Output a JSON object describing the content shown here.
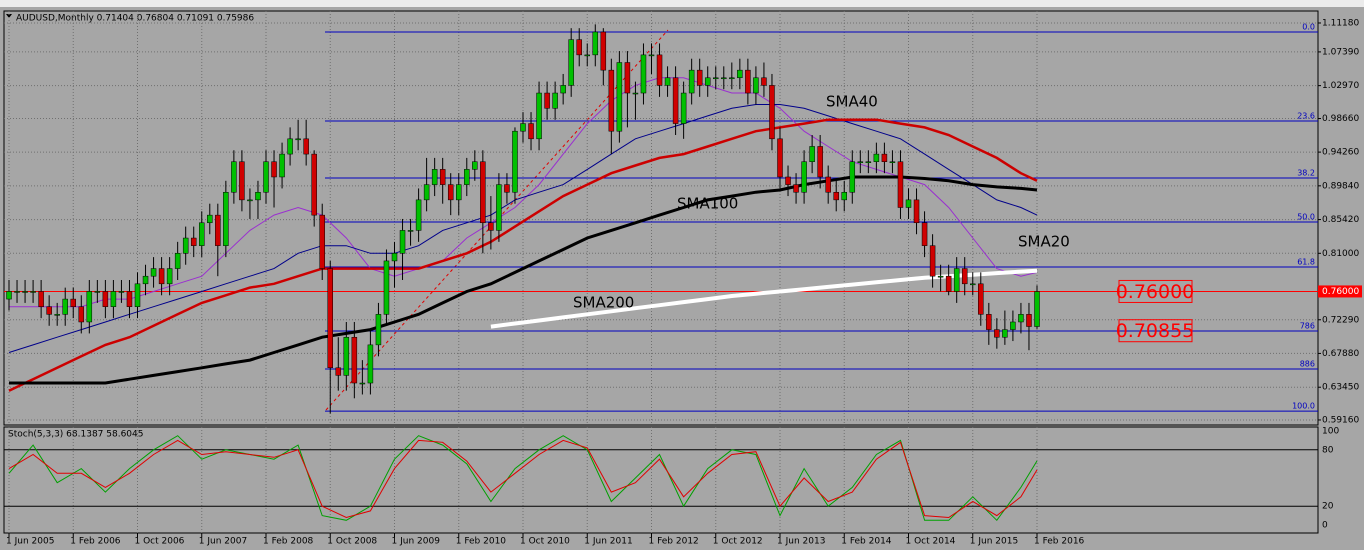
{
  "chart_data": {
    "type": "candlestick",
    "title": "AUDUSD,Monthly  0.71404 0.76804 0.71091 0.75986",
    "categories": [
      "1 Jun 2005",
      null,
      null,
      null,
      null,
      null,
      null,
      null,
      "1 Feb 2006",
      null,
      null,
      null,
      null,
      null,
      null,
      null,
      "1 Oct 2006",
      null,
      null,
      null,
      null,
      null,
      null,
      null,
      "1 Jun 2007",
      null,
      null,
      null,
      null,
      null,
      null,
      null,
      "1 Feb 2008",
      null,
      null,
      null,
      null,
      null,
      null,
      null,
      "1 Oct 2008",
      null,
      null,
      null,
      null,
      null,
      null,
      null,
      "1 Jun 2009",
      null,
      null,
      null,
      null,
      null,
      null,
      null,
      "1 Feb 2010",
      null,
      null,
      null,
      null,
      null,
      null,
      null,
      "1 Oct 2010",
      null,
      null,
      null,
      null,
      null,
      null,
      null,
      "1 Jun 2011",
      null,
      null,
      null,
      null,
      null,
      null,
      null,
      "1 Feb 2012",
      null,
      null,
      null,
      null,
      null,
      null,
      null,
      "1 Oct 2012",
      null,
      null,
      null,
      null,
      null,
      null,
      null,
      "1 Jun 2013",
      null,
      null,
      null,
      null,
      null,
      null,
      null,
      "1 Feb 2014",
      null,
      null,
      null,
      null,
      null,
      null,
      null,
      "1 Oct 2014",
      null,
      null,
      null,
      null,
      null,
      null,
      null,
      "1 Jun 2015",
      null,
      null,
      null,
      null,
      null,
      null,
      null,
      "1 Feb 2016"
    ],
    "open": [
      0.75,
      0.76,
      0.76,
      0.76,
      0.76,
      0.74,
      0.73,
      0.73,
      0.75,
      0.74,
      0.72,
      0.76,
      0.76,
      0.74,
      0.76,
      0.76,
      0.74,
      0.77,
      0.78,
      0.79,
      0.77,
      0.79,
      0.81,
      0.83,
      0.82,
      0.85,
      0.86,
      0.82,
      0.89,
      0.93,
      0.88,
      0.88,
      0.89,
      0.93,
      0.91,
      0.94,
      0.96,
      0.96,
      0.94,
      0.86,
      0.79,
      0.66,
      0.65,
      0.7,
      0.64,
      0.64,
      0.69,
      0.73,
      0.8,
      0.81,
      0.84,
      0.84,
      0.88,
      0.9,
      0.92,
      0.9,
      0.88,
      0.9,
      0.92,
      0.93,
      0.85,
      0.84,
      0.9,
      0.89,
      0.97,
      0.98,
      0.96,
      1.02,
      1.0,
      1.02,
      1.03,
      1.09,
      1.07,
      1.07,
      1.1,
      1.05,
      0.97,
      1.06,
      1.02,
      1.02,
      1.07,
      1.07,
      1.03,
      1.04,
      0.98,
      1.02,
      1.05,
      1.03,
      1.04,
      1.04,
      1.04,
      1.04,
      1.05,
      1.02,
      1.04,
      1.03,
      0.96,
      0.91,
      0.9,
      0.89,
      0.93,
      0.95,
      0.91,
      0.89,
      0.88,
      0.89,
      0.93,
      0.93,
      0.93,
      0.94,
      0.93,
      0.93,
      0.87,
      0.88,
      0.85,
      0.82,
      0.78,
      0.78,
      0.76,
      0.79,
      0.77,
      0.77,
      0.73,
      0.71,
      0.7,
      0.71,
      0.72,
      0.73,
      0.71404
    ],
    "high": [
      0.775,
      0.775,
      0.775,
      0.775,
      0.775,
      0.755,
      0.745,
      0.765,
      0.765,
      0.755,
      0.775,
      0.775,
      0.775,
      0.775,
      0.775,
      0.775,
      0.785,
      0.795,
      0.805,
      0.805,
      0.805,
      0.825,
      0.845,
      0.845,
      0.865,
      0.875,
      0.875,
      0.905,
      0.945,
      0.945,
      0.895,
      0.905,
      0.945,
      0.945,
      0.955,
      0.975,
      0.985,
      0.985,
      0.945,
      0.875,
      0.8,
      0.7,
      0.72,
      0.72,
      0.67,
      0.71,
      0.745,
      0.815,
      0.825,
      0.855,
      0.855,
      0.895,
      0.935,
      0.935,
      0.935,
      0.915,
      0.915,
      0.935,
      0.945,
      0.945,
      0.885,
      0.915,
      0.915,
      0.975,
      0.995,
      0.995,
      1.035,
      1.035,
      1.035,
      1.045,
      1.105,
      1.105,
      1.085,
      1.11,
      1.105,
      1.065,
      1.075,
      1.075,
      1.035,
      1.085,
      1.085,
      1.085,
      1.055,
      1.055,
      1.035,
      1.065,
      1.065,
      1.055,
      1.055,
      1.055,
      1.06,
      1.065,
      1.065,
      1.055,
      1.06,
      1.045,
      0.975,
      0.925,
      0.915,
      0.945,
      0.965,
      0.965,
      0.925,
      0.905,
      0.905,
      0.945,
      0.945,
      0.945,
      0.955,
      0.955,
      0.945,
      0.945,
      0.895,
      0.895,
      0.865,
      0.835,
      0.795,
      0.795,
      0.805,
      0.805,
      0.785,
      0.785,
      0.745,
      0.725,
      0.735,
      0.735,
      0.745,
      0.745,
      0.76804
    ],
    "low": [
      0.735,
      0.745,
      0.745,
      0.745,
      0.725,
      0.715,
      0.715,
      0.715,
      0.725,
      0.705,
      0.705,
      0.745,
      0.725,
      0.725,
      0.745,
      0.725,
      0.725,
      0.755,
      0.765,
      0.755,
      0.755,
      0.775,
      0.795,
      0.805,
      0.805,
      0.835,
      0.78,
      0.805,
      0.875,
      0.865,
      0.855,
      0.855,
      0.875,
      0.87,
      0.895,
      0.925,
      0.945,
      0.925,
      0.845,
      0.775,
      0.6,
      0.63,
      0.63,
      0.62,
      0.625,
      0.625,
      0.675,
      0.715,
      0.765,
      0.775,
      0.82,
      0.825,
      0.865,
      0.885,
      0.875,
      0.86,
      0.86,
      0.885,
      0.905,
      0.81,
      0.815,
      0.825,
      0.875,
      0.875,
      0.955,
      0.945,
      0.945,
      0.985,
      0.985,
      1.005,
      1.015,
      1.055,
      1.055,
      1.055,
      1.03,
      0.94,
      0.955,
      0.975,
      0.985,
      1.005,
      1.045,
      1.015,
      1.015,
      0.965,
      0.96,
      1.005,
      1.015,
      1.015,
      1.025,
      1.025,
      1.025,
      1.025,
      1.005,
      1.005,
      1.015,
      0.945,
      0.895,
      0.885,
      0.875,
      0.875,
      0.915,
      0.895,
      0.875,
      0.865,
      0.865,
      0.875,
      0.915,
      0.915,
      0.915,
      0.915,
      0.915,
      0.855,
      0.855,
      0.835,
      0.805,
      0.765,
      0.76,
      0.755,
      0.745,
      0.755,
      0.755,
      0.715,
      0.69,
      0.685,
      0.69,
      0.695,
      0.705,
      0.683,
      0.71091
    ],
    "close": [
      0.76,
      0.76,
      0.76,
      0.76,
      0.74,
      0.73,
      0.73,
      0.75,
      0.74,
      0.72,
      0.76,
      0.76,
      0.74,
      0.76,
      0.76,
      0.74,
      0.77,
      0.78,
      0.79,
      0.77,
      0.79,
      0.81,
      0.83,
      0.82,
      0.85,
      0.86,
      0.82,
      0.89,
      0.93,
      0.88,
      0.88,
      0.89,
      0.93,
      0.91,
      0.94,
      0.96,
      0.96,
      0.94,
      0.86,
      0.79,
      0.66,
      0.65,
      0.7,
      0.64,
      0.64,
      0.69,
      0.73,
      0.8,
      0.81,
      0.84,
      0.84,
      0.88,
      0.9,
      0.92,
      0.9,
      0.88,
      0.9,
      0.92,
      0.93,
      0.85,
      0.84,
      0.9,
      0.89,
      0.97,
      0.98,
      0.96,
      1.02,
      1.0,
      1.02,
      1.03,
      1.09,
      1.07,
      1.07,
      1.1,
      1.05,
      0.97,
      1.06,
      1.02,
      1.02,
      1.07,
      1.07,
      1.03,
      1.04,
      0.98,
      1.02,
      1.05,
      1.03,
      1.04,
      1.04,
      1.04,
      1.04,
      1.05,
      1.02,
      1.04,
      1.03,
      0.96,
      0.91,
      0.9,
      0.89,
      0.93,
      0.95,
      0.91,
      0.89,
      0.88,
      0.89,
      0.93,
      0.93,
      0.93,
      0.94,
      0.93,
      0.93,
      0.87,
      0.88,
      0.85,
      0.82,
      0.78,
      0.78,
      0.76,
      0.79,
      0.77,
      0.77,
      0.73,
      0.71,
      0.7,
      0.71,
      0.72,
      0.73,
      0.71404,
      0.75986
    ],
    "up_color": "#00c000",
    "down_color": "#d00000",
    "ylim": [
      0.585,
      1.1275
    ],
    "yticks": [
      {
        "value": 1.1118,
        "label": "1.11180"
      },
      {
        "value": 1.0739,
        "label": "1.07390"
      },
      {
        "value": 1.0297,
        "label": "1.02970"
      },
      {
        "value": 0.9866,
        "label": "0.98660"
      },
      {
        "value": 0.9426,
        "label": "0.94260"
      },
      {
        "value": 0.8984,
        "label": "0.89840"
      },
      {
        "value": 0.8542,
        "label": "0.85420"
      },
      {
        "value": 0.81,
        "label": "0.81000"
      },
      {
        "value": 0.7229,
        "label": "0.72290"
      },
      {
        "value": 0.6788,
        "label": "0.67880"
      },
      {
        "value": 0.6345,
        "label": "0.63450"
      },
      {
        "value": 0.5916,
        "label": "0.59160"
      }
    ],
    "grid": true,
    "price_line": {
      "value": 0.76,
      "label": "0.76000",
      "color": "#ff0000"
    },
    "boxes": [
      {
        "value": 0.76,
        "label": "0.76000"
      },
      {
        "value": 0.70855,
        "label": "0.70855"
      }
    ],
    "fibo": {
      "color": "#0000c0",
      "levels": [
        {
          "value": 1.1,
          "label": "0.0"
        },
        {
          "value": 0.9834,
          "label": "23.6"
        },
        {
          "value": 0.9087,
          "label": "38.2"
        },
        {
          "value": 0.851,
          "label": "50.0"
        },
        {
          "value": 0.792,
          "label": "61.8"
        },
        {
          "value": 0.7081,
          "label": "786"
        },
        {
          "value": 0.6583,
          "label": "886"
        },
        {
          "value": 0.6032,
          "label": "100.0"
        }
      ]
    },
    "x": [
      "2005-06",
      "2005-09",
      "2005-12",
      "2006-03",
      "2006-06",
      "2006-09",
      "2006-12",
      "2007-03",
      "2007-06",
      "2007-09",
      "2007-12",
      "2008-03",
      "2008-06",
      "2008-09",
      "2008-12",
      "2009-03",
      "2009-06",
      "2009-09",
      "2009-12",
      "2010-03",
      "2010-06",
      "2010-09",
      "2010-12",
      "2011-03",
      "2011-06",
      "2011-09",
      "2011-12",
      "2012-03",
      "2012-06",
      "2012-09",
      "2012-12",
      "2013-03",
      "2013-06",
      "2013-09",
      "2013-12",
      "2014-03",
      "2014-06",
      "2014-09",
      "2014-12",
      "2015-03",
      "2015-06",
      "2015-09",
      "2015-12",
      "2016-02"
    ],
    "moving_averages": [
      {
        "name": "SMA20",
        "color": "#9a2fd0",
        "width": 1,
        "values": [
          0.74,
          0.74,
          0.74,
          0.74,
          0.75,
          0.75,
          0.76,
          0.77,
          0.78,
          0.81,
          0.84,
          0.86,
          0.87,
          0.86,
          0.83,
          0.79,
          0.78,
          0.79,
          0.8,
          0.83,
          0.85,
          0.87,
          0.9,
          0.94,
          0.98,
          1.01,
          1.03,
          1.04,
          1.04,
          1.03,
          1.02,
          1.02,
          1.0,
          0.97,
          0.95,
          0.93,
          0.92,
          0.91,
          0.9,
          0.87,
          0.83,
          0.79,
          0.78,
          0.785
        ]
      },
      {
        "name": "SMA40",
        "color": "#00008a",
        "width": 1,
        "values": [
          0.68,
          0.69,
          0.7,
          0.71,
          0.72,
          0.73,
          0.74,
          0.75,
          0.76,
          0.77,
          0.78,
          0.79,
          0.81,
          0.82,
          0.82,
          0.81,
          0.81,
          0.82,
          0.84,
          0.85,
          0.86,
          0.88,
          0.89,
          0.9,
          0.92,
          0.94,
          0.96,
          0.97,
          0.98,
          0.99,
          1.0,
          1.005,
          1.005,
          1.0,
          0.99,
          0.98,
          0.97,
          0.96,
          0.94,
          0.92,
          0.9,
          0.88,
          0.87,
          0.86
        ]
      },
      {
        "color": "#cc0000",
        "width": 2.5,
        "values": [
          0.63,
          0.645,
          0.66,
          0.675,
          0.69,
          0.7,
          0.715,
          0.73,
          0.745,
          0.755,
          0.765,
          0.77,
          0.78,
          0.79,
          0.79,
          0.79,
          0.79,
          0.79,
          0.8,
          0.81,
          0.825,
          0.845,
          0.865,
          0.885,
          0.9,
          0.915,
          0.925,
          0.935,
          0.94,
          0.95,
          0.96,
          0.97,
          0.975,
          0.98,
          0.985,
          0.985,
          0.985,
          0.98,
          0.975,
          0.965,
          0.95,
          0.935,
          0.915,
          0.905
        ]
      },
      {
        "name": "SMA100",
        "color": "#000000",
        "width": 3,
        "values": [
          0.64,
          0.64,
          0.64,
          0.64,
          0.64,
          0.645,
          0.65,
          0.655,
          0.66,
          0.665,
          0.67,
          0.68,
          0.69,
          0.7,
          0.705,
          0.71,
          0.72,
          0.73,
          0.745,
          0.76,
          0.77,
          0.785,
          0.8,
          0.815,
          0.83,
          0.84,
          0.85,
          0.86,
          0.87,
          0.88,
          0.885,
          0.89,
          0.893,
          0.9,
          0.905,
          0.91,
          0.91,
          0.91,
          0.908,
          0.905,
          0.9,
          0.897,
          0.895,
          0.893
        ]
      },
      {
        "name": "SMA200",
        "color": "#ffffff",
        "width": 4,
        "values": [
          null,
          null,
          null,
          null,
          null,
          null,
          null,
          null,
          null,
          null,
          null,
          null,
          null,
          null,
          null,
          null,
          null,
          null,
          null,
          null,
          0.714,
          0.718,
          0.722,
          0.726,
          0.73,
          0.734,
          0.738,
          0.742,
          0.746,
          0.75,
          0.754,
          0.757,
          0.76,
          0.763,
          0.766,
          0.769,
          0.772,
          0.775,
          0.778,
          0.78,
          0.782,
          0.784,
          0.786,
          0.787
        ]
      }
    ],
    "stochastic": {
      "title": "Stoch(5,3,3) 68.1387 58.6045",
      "ylim": [
        0,
        100
      ],
      "yticks": [
        100,
        80,
        20,
        0
      ],
      "levels": [
        80,
        20
      ],
      "series": [
        {
          "color": "#00a000",
          "values": [
            55,
            85,
            45,
            60,
            35,
            60,
            80,
            95,
            70,
            80,
            75,
            70,
            85,
            10,
            5,
            20,
            70,
            95,
            85,
            65,
            25,
            60,
            80,
            95,
            80,
            25,
            50,
            75,
            20,
            60,
            80,
            75,
            10,
            60,
            20,
            40,
            75,
            90,
            5,
            5,
            30,
            5,
            40,
            68.1387
          ]
        },
        {
          "color": "#e00000",
          "values": [
            60,
            75,
            55,
            55,
            40,
            55,
            75,
            90,
            75,
            78,
            75,
            72,
            80,
            20,
            8,
            15,
            60,
            90,
            88,
            68,
            35,
            55,
            75,
            90,
            82,
            35,
            45,
            70,
            30,
            55,
            75,
            78,
            20,
            50,
            25,
            35,
            70,
            88,
            10,
            8,
            25,
            10,
            30,
            58.6045
          ]
        }
      ]
    }
  }
}
